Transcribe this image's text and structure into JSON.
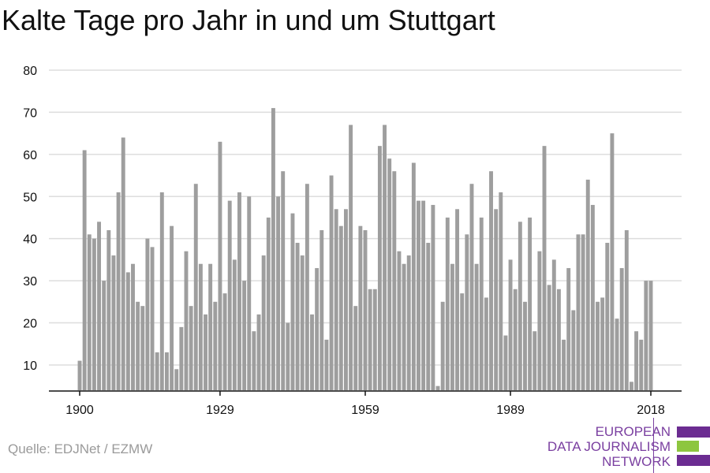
{
  "title": "Kalte Tage pro Jahr in und um Stuttgart",
  "source": "Quelle: EDJNet / EZMW",
  "logo": {
    "line1": "EUROPEAN",
    "line2": "DATA JOURNALISM",
    "line3": "NETWORK",
    "colors": {
      "purple": "#6b2c91",
      "green": "#8dc63f",
      "text": "#7a3fa0"
    }
  },
  "colors": {
    "bar": "#9e9e9e",
    "grid": "#dddddd",
    "axis": "#111111"
  },
  "chart_data": {
    "type": "bar",
    "title": "Kalte Tage pro Jahr in und um Stuttgart",
    "xlabel": "",
    "ylabel": "",
    "x_ticks": [
      1900,
      1929,
      1959,
      1989,
      2018
    ],
    "y_ticks": [
      10,
      20,
      30,
      40,
      50,
      60,
      70,
      80
    ],
    "ylim": [
      4,
      80
    ],
    "grid": true,
    "start_year": 1900,
    "values": [
      11,
      61,
      41,
      40,
      44,
      30,
      42,
      36,
      51,
      64,
      32,
      34,
      25,
      24,
      40,
      38,
      13,
      51,
      13,
      43,
      9,
      19,
      37,
      24,
      53,
      34,
      22,
      34,
      25,
      63,
      27,
      49,
      35,
      51,
      30,
      50,
      18,
      22,
      36,
      45,
      71,
      50,
      56,
      20,
      46,
      39,
      36,
      53,
      22,
      33,
      42,
      16,
      55,
      47,
      43,
      47,
      67,
      24,
      43,
      42,
      28,
      28,
      62,
      67,
      59,
      56,
      37,
      34,
      36,
      58,
      49,
      49,
      39,
      48,
      5,
      25,
      45,
      34,
      47,
      27,
      41,
      53,
      34,
      45,
      26,
      56,
      47,
      51,
      17,
      35,
      28,
      44,
      25,
      45,
      18,
      37,
      62,
      29,
      35,
      28,
      16,
      33,
      23,
      41,
      41,
      54,
      48,
      25,
      26,
      39,
      65,
      21,
      33,
      42,
      6,
      18,
      16,
      30,
      30
    ]
  }
}
